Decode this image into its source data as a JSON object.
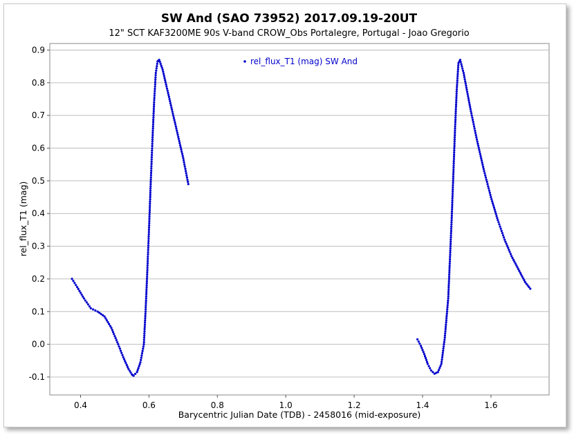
{
  "chart_data": {
    "type": "scatter",
    "title": "SW And (SAO 73952) 2017.09.19-20UT",
    "subtitle": "12\" SCT KAF3200ME 90s V-band CROW_Obs Portalegre, Portugal - Joao Gregorio",
    "xlabel": "Barycentric Julian Date (TDB) - 2458016 (mid-exposure)",
    "ylabel": "rel_flux_T1 (mag)",
    "xlim": [
      0.31,
      1.77
    ],
    "ylim": [
      -0.155,
      0.92
    ],
    "xticks": [
      "0.4",
      "0.6",
      "0.8",
      "1.0",
      "1.2",
      "1.4",
      "1.6"
    ],
    "yticks": [
      "-0.1",
      "0.0",
      "0.1",
      "0.2",
      "0.3",
      "0.4",
      "0.5",
      "0.6",
      "0.7",
      "0.8",
      "0.9"
    ],
    "grid": "horizontal",
    "legend_position": "top-center",
    "series": [
      {
        "name": "rel_flux_T1 (mag) SW And",
        "color": "#0000cc",
        "segments": [
          {
            "x": [
              0.375,
              0.39,
              0.41,
              0.43,
              0.45,
              0.47,
              0.49,
              0.51,
              0.525,
              0.54,
              0.55,
              0.555,
              0.565,
              0.575,
              0.585,
              0.59,
              0.595,
              0.6,
              0.605,
              0.61,
              0.615,
              0.62,
              0.625,
              0.63,
              0.64,
              0.66,
              0.68,
              0.7,
              0.715
            ],
            "y": [
              0.2,
              0.175,
              0.14,
              0.11,
              0.1,
              0.085,
              0.05,
              0.0,
              -0.04,
              -0.075,
              -0.092,
              -0.096,
              -0.085,
              -0.055,
              0.0,
              0.1,
              0.22,
              0.35,
              0.49,
              0.62,
              0.74,
              0.83,
              0.865,
              0.87,
              0.84,
              0.75,
              0.66,
              0.57,
              0.49
            ]
          },
          {
            "x": [
              1.385,
              1.395,
              1.405,
              1.415,
              1.425,
              1.435,
              1.445,
              1.455,
              1.465,
              1.475,
              1.48,
              1.485,
              1.49,
              1.495,
              1.5,
              1.505,
              1.51,
              1.52,
              1.54,
              1.56,
              1.58,
              1.6,
              1.62,
              1.64,
              1.66,
              1.68,
              1.7,
              1.715
            ],
            "y": [
              0.015,
              -0.005,
              -0.03,
              -0.06,
              -0.08,
              -0.09,
              -0.085,
              -0.06,
              0.02,
              0.14,
              0.26,
              0.38,
              0.52,
              0.66,
              0.78,
              0.86,
              0.87,
              0.83,
              0.72,
              0.62,
              0.53,
              0.45,
              0.38,
              0.32,
              0.27,
              0.23,
              0.19,
              0.17
            ]
          }
        ]
      }
    ]
  }
}
